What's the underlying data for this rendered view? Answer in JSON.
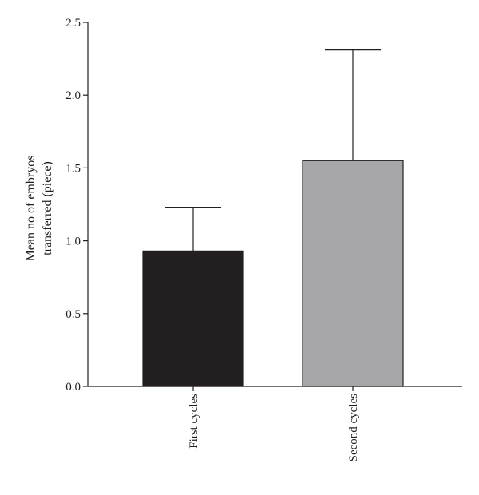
{
  "chart_data": {
    "type": "bar",
    "title": "",
    "xlabel": "",
    "ylabel": [
      "Mean no of embryos",
      "transferred (piece)"
    ],
    "categories": [
      "First cycles",
      "Second cycles"
    ],
    "values": [
      0.93,
      1.55
    ],
    "error_upper": [
      1.23,
      2.31
    ],
    "bar_colors": [
      "#231f20",
      "#a7a6ab"
    ],
    "ylim": [
      0,
      2.5
    ],
    "yticks": [
      0.0,
      0.5,
      1.0,
      1.5,
      2.0,
      2.5
    ],
    "ytick_labels": [
      "0.0",
      "0.5",
      "1.0",
      "1.5",
      "2.0",
      "2.5"
    ],
    "grid": false,
    "legend": "none"
  }
}
